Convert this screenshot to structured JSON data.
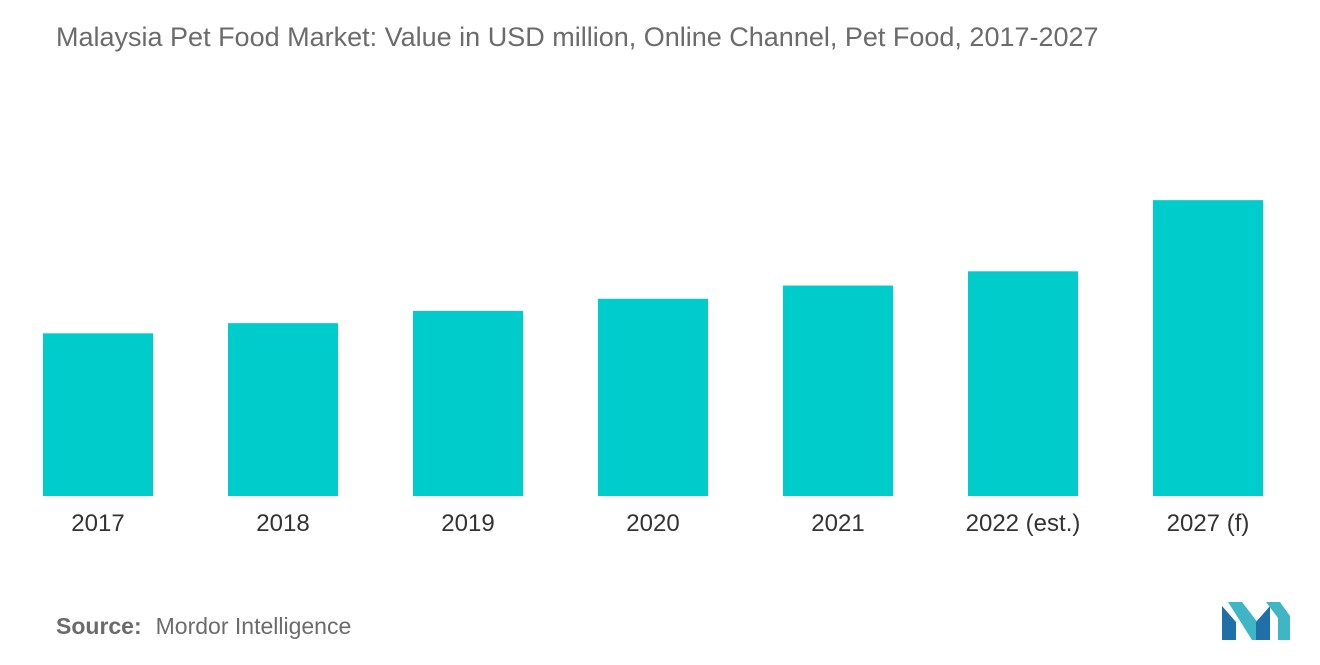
{
  "chart_data": {
    "type": "bar",
    "title": "Malaysia Pet Food Market: Value in USD million, Online Channel, Pet Food, 2017-2027",
    "categories": [
      "2017",
      "2018",
      "2019",
      "2020",
      "2021",
      "2022 (est.)",
      "2027 (f)"
    ],
    "values": [
      160,
      170,
      182,
      194,
      207,
      221,
      291
    ],
    "xlabel": "",
    "ylabel": "",
    "ylim": [
      0,
      300
    ],
    "grid": false,
    "legend": "none",
    "bar_color": "#00cccc"
  },
  "source": {
    "label": "Source:",
    "text": "Mordor Intelligence"
  },
  "logo": {
    "icon": "mordor-intelligence-logo-icon",
    "colors": [
      "#1f6fa8",
      "#3fb6c6"
    ]
  }
}
